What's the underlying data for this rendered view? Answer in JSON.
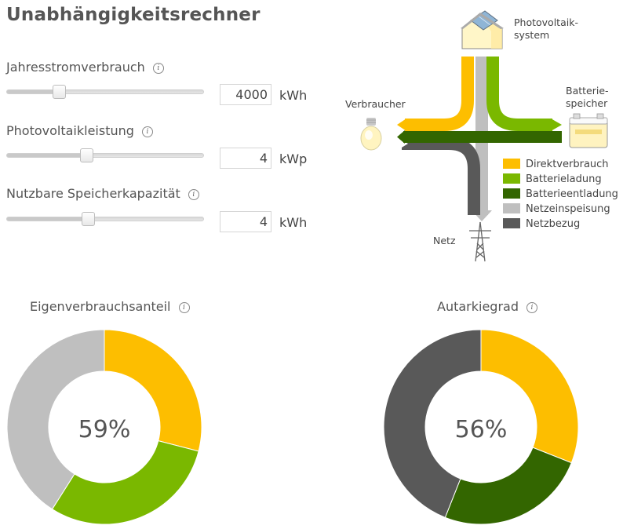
{
  "title": "Unabhängigkeitsrechner",
  "info_glyph": "i",
  "inputs": [
    {
      "label": "Jahresstromverbrauch",
      "value": "4000",
      "unit": "kWh",
      "slider_fraction": 0.26
    },
    {
      "label": "Photovoltaikleistung",
      "value": "4",
      "unit": "kWp",
      "slider_fraction": 0.4
    },
    {
      "label": "Nutzbare Speicherkapazität",
      "value": "4",
      "unit": "kWh",
      "slider_fraction": 0.41
    }
  ],
  "diagram": {
    "pv_label_1": "Photovoltaik-",
    "pv_label_2": "system",
    "battery_label_1": "Batterie-",
    "battery_label_2": "speicher",
    "consumer_label": "Verbraucher",
    "grid_label": "Netz",
    "icons": {
      "pv": "house-solar-icon",
      "battery": "battery-icon",
      "consumer": "light-bulb-icon",
      "grid": "power-pylon-icon"
    }
  },
  "legend": [
    {
      "label": "Direktverbrauch",
      "color": "#fdbe00"
    },
    {
      "label": "Batterieladung",
      "color": "#7ab800"
    },
    {
      "label": "Batterieentladung",
      "color": "#336600"
    },
    {
      "label": "Netzeinspeisung",
      "color": "#bfbfbf"
    },
    {
      "label": "Netzbezug",
      "color": "#595959"
    }
  ],
  "chart_data": [
    {
      "type": "pie",
      "title": "Eigenverbrauchsanteil",
      "center_label": "59%",
      "slices": [
        {
          "name": "Direktverbrauch",
          "value": 29,
          "color": "#fdbe00"
        },
        {
          "name": "Batterieladung",
          "value": 30,
          "color": "#7ab800"
        },
        {
          "name": "Netzeinspeisung",
          "value": 41,
          "color": "#bfbfbf"
        }
      ]
    },
    {
      "type": "pie",
      "title": "Autarkiegrad",
      "center_label": "56%",
      "slices": [
        {
          "name": "Direktverbrauch",
          "value": 31,
          "color": "#fdbe00"
        },
        {
          "name": "Batterieentladung",
          "value": 25,
          "color": "#336600"
        },
        {
          "name": "Netzbezug",
          "value": 44,
          "color": "#595959"
        }
      ]
    }
  ]
}
